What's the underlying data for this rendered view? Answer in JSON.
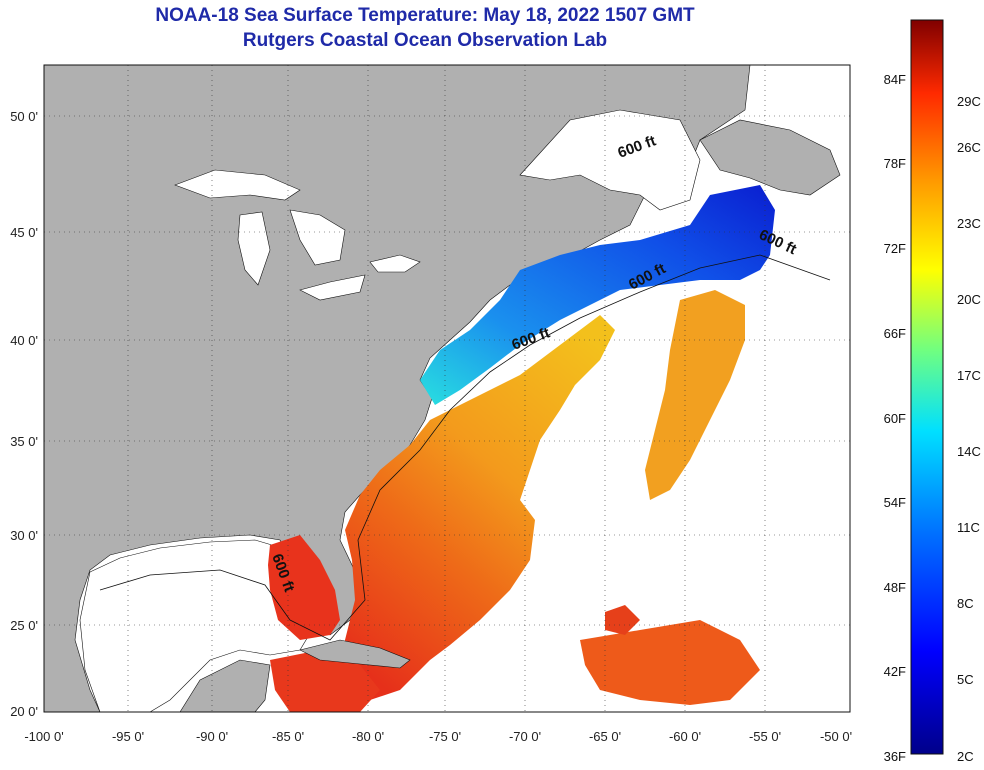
{
  "title": "NOAA-18 Sea Surface Temperature:  May 18, 2022 1507 GMT",
  "subtitle": "Rutgers Coastal Ocean Observation Lab",
  "lon_ticks": [
    "-100 0'",
    "-95 0'",
    "-90 0'",
    "-85 0'",
    "-80 0'",
    "-75 0'",
    "-70 0'",
    "-65 0'",
    "-60 0'",
    "-55 0'",
    "-50 0'"
  ],
  "lat_ticks": [
    "50 0'",
    "45 0'",
    "40 0'",
    "35 0'",
    "30 0'",
    "25 0'",
    "20 0'"
  ],
  "isobath_label": "600 ft",
  "colorbar": {
    "f_labels": [
      "84F",
      "78F",
      "72F",
      "66F",
      "60F",
      "54F",
      "48F",
      "42F",
      "36F"
    ],
    "c_labels": [
      "29C",
      "26C",
      "23C",
      "20C",
      "17C",
      "14C",
      "11C",
      "8C",
      "5C",
      "2C"
    ]
  },
  "colors": {
    "land": "#b0b0b0",
    "title": "#1f2aa8",
    "warm": "#e8331c",
    "cold": "#0a2ad8"
  }
}
